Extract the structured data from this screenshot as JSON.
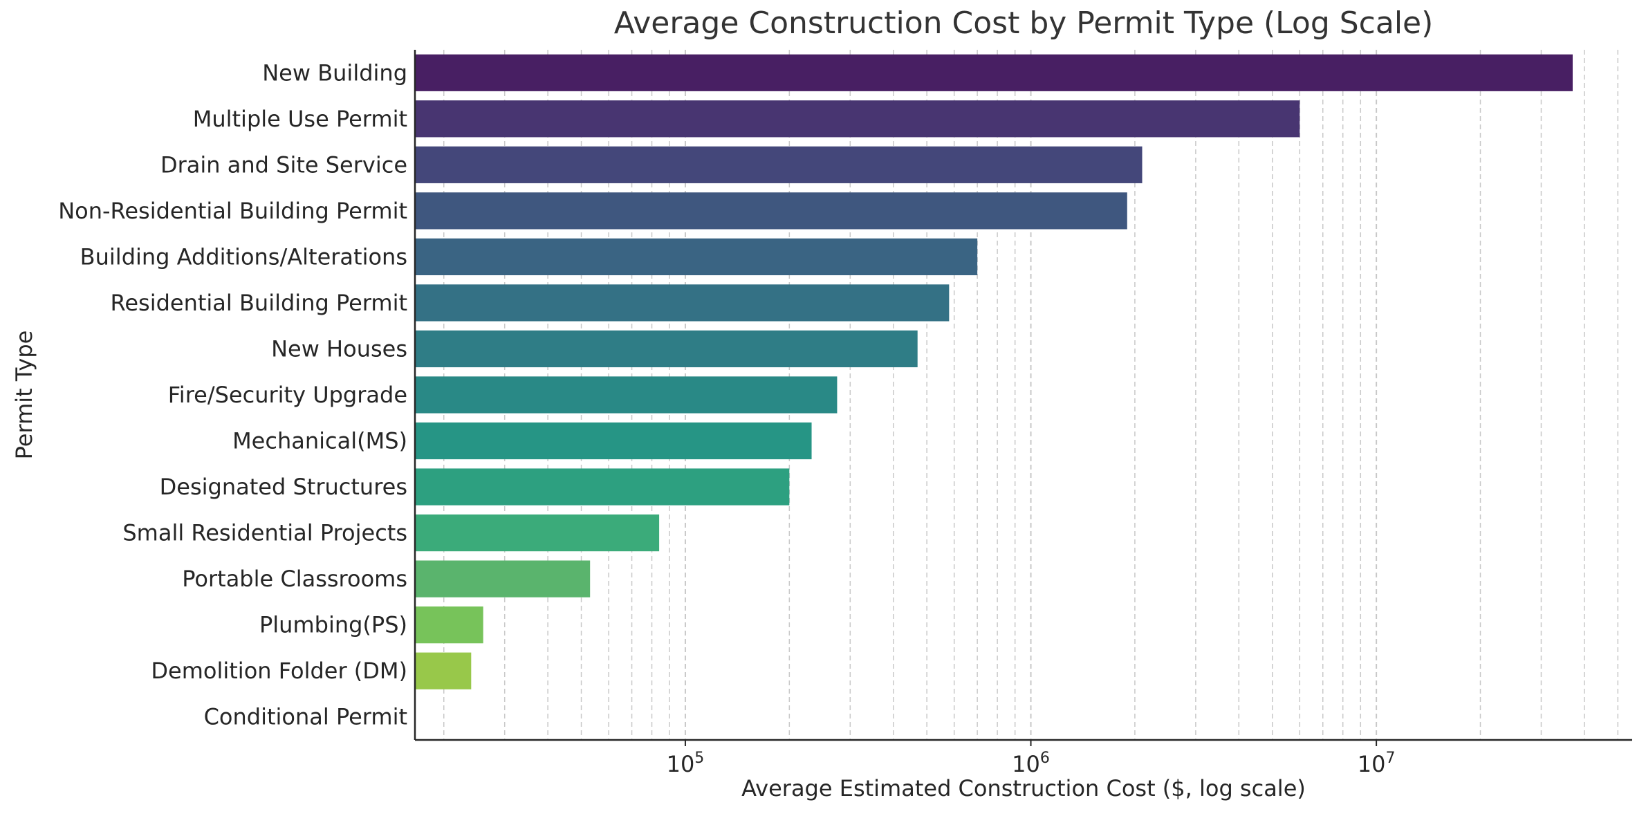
{
  "chart_data": {
    "type": "bar",
    "orientation": "horizontal",
    "title": "Average Construction Cost by Permit Type (Log Scale)",
    "xlabel": "Average Estimated Construction Cost ($, log scale)",
    "ylabel": "Permit Type",
    "x_scale": "log",
    "xlim": [
      16500,
      55000000
    ],
    "xticks": [
      {
        "value": 100000,
        "base": "10",
        "exp": "5"
      },
      {
        "value": 1000000,
        "base": "10",
        "exp": "6"
      },
      {
        "value": 10000000,
        "base": "10",
        "exp": "7"
      }
    ],
    "grid": "x-major-and-minor-dashed",
    "categories": [
      "New Building",
      "Multiple Use Permit",
      "Drain and Site Service",
      "Non-Residential Building Permit",
      "Building Additions/Alterations",
      "Residential Building Permit",
      "New Houses",
      "Fire/Security Upgrade",
      "Mechanical(MS)",
      "Designated Structures",
      "Small Residential Projects",
      "Portable Classrooms",
      "Plumbing(PS)",
      "Demolition Folder (DM)",
      "Conditional Permit"
    ],
    "values": [
      37000000,
      6000000,
      2100000,
      1900000,
      700000,
      580000,
      470000,
      275000,
      232000,
      200000,
      84000,
      53000,
      26000,
      24000,
      0
    ],
    "colors": [
      "#481f63",
      "#483571",
      "#44477a",
      "#3f577f",
      "#3a6483",
      "#347185",
      "#2f7d86",
      "#298986",
      "#269585",
      "#2da080",
      "#3bab7a",
      "#5ab46d",
      "#77c35a",
      "#98c84a",
      "#bcd637"
    ]
  }
}
